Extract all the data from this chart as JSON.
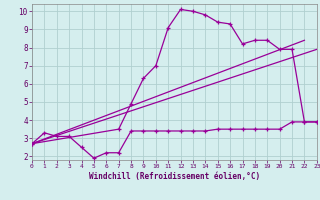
{
  "xlabel": "Windchill (Refroidissement éolien,°C)",
  "background_color": "#d5eeee",
  "grid_color": "#b0d0d0",
  "line_color": "#990099",
  "xlim": [
    0,
    23
  ],
  "ylim": [
    1.8,
    10.4
  ],
  "xticks": [
    0,
    1,
    2,
    3,
    4,
    5,
    6,
    7,
    8,
    9,
    10,
    11,
    12,
    13,
    14,
    15,
    16,
    17,
    18,
    19,
    20,
    21,
    22,
    23
  ],
  "yticks": [
    2,
    3,
    4,
    5,
    6,
    7,
    8,
    9,
    10
  ],
  "curve1_x": [
    0,
    1,
    2,
    3,
    4,
    5,
    6,
    7,
    8,
    9,
    10,
    11,
    12,
    13,
    14,
    15,
    16,
    17,
    18,
    19,
    20,
    21,
    22,
    23
  ],
  "curve1_y": [
    2.7,
    3.3,
    3.1,
    3.1,
    2.5,
    1.9,
    2.2,
    2.2,
    3.4,
    3.4,
    3.4,
    3.4,
    3.4,
    3.4,
    3.4,
    3.5,
    3.5,
    3.5,
    3.5,
    3.5,
    3.5,
    3.9,
    3.9,
    3.9
  ],
  "curve2_x": [
    0,
    7,
    8,
    9,
    10,
    11,
    12,
    13,
    14,
    15,
    16,
    17,
    18,
    19,
    20,
    21,
    22,
    23
  ],
  "curve2_y": [
    2.7,
    3.5,
    4.9,
    6.3,
    7.0,
    9.1,
    10.1,
    10.0,
    9.8,
    9.4,
    9.3,
    8.2,
    8.4,
    8.4,
    7.9,
    7.9,
    3.9,
    3.9
  ],
  "curve3_x": [
    0,
    23
  ],
  "curve3_y": [
    2.7,
    7.9
  ],
  "curve4_x": [
    0,
    22
  ],
  "curve4_y": [
    2.7,
    8.4
  ]
}
